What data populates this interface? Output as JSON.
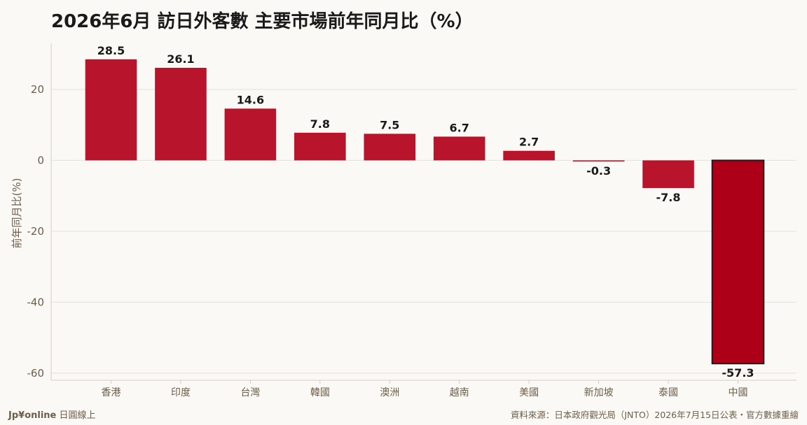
{
  "chart_data": {
    "type": "bar",
    "title": "2026年6月 訪日外客數 主要市場前年同月比（%）",
    "ylabel": "前年同月比(%)",
    "xlabel": "",
    "ylim": [
      -62,
      33
    ],
    "yticks": [
      20,
      0,
      -20,
      -40,
      -60
    ],
    "grid": true,
    "categories": [
      "香港",
      "印度",
      "台灣",
      "韓國",
      "澳洲",
      "越南",
      "美國",
      "新加坡",
      "泰國",
      "中國"
    ],
    "values": [
      28.5,
      26.1,
      14.6,
      7.8,
      7.5,
      6.7,
      2.7,
      -0.3,
      -7.8,
      -57.3
    ],
    "value_labels": [
      "28.5",
      "26.1",
      "14.6",
      "7.8",
      "7.5",
      "6.7",
      "2.7",
      "-0.3",
      "-7.8",
      "-57.3"
    ],
    "highlight_category": "中國",
    "colors": {
      "bar": "#b8142b",
      "highlight": "#ad0018",
      "highlight_border": "#1a1a1a",
      "grid": "#e4e0d8",
      "axis_text": "#6b5e4a"
    }
  },
  "footer": {
    "brand": "Jp¥online",
    "brand_suffix": "日圓線上",
    "source": "資料來源：日本政府觀光局（JNTO）2026年7月15日公表・官方數據重繪"
  }
}
